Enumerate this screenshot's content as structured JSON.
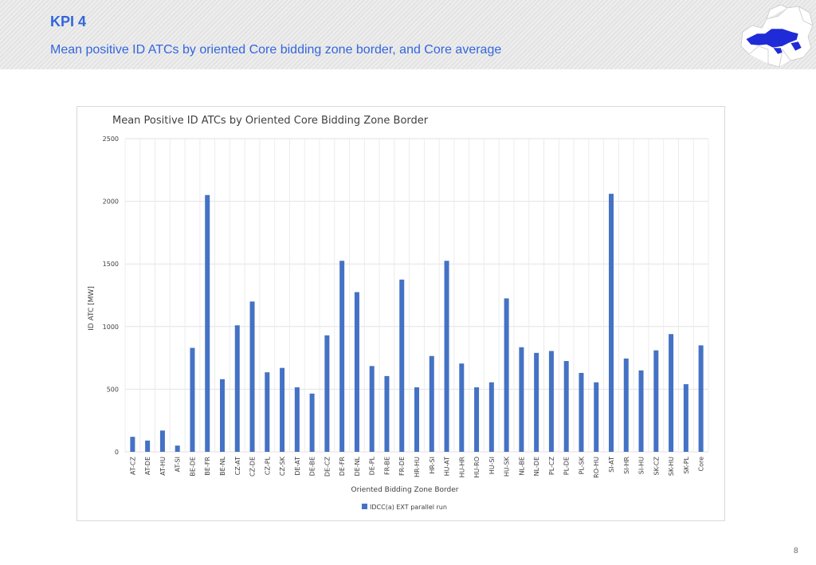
{
  "slide": {
    "title": "KPI 4",
    "subtitle": "Mean positive ID ATCs by oriented Core bidding zone border, and Core average",
    "page_number": "8",
    "accent_color": "#3366dd"
  },
  "chart_data": {
    "type": "bar",
    "title": "Mean Positive ID ATCs by Oriented Core Bidding Zone Border",
    "xlabel": "Oriented Bidding Zone Border",
    "ylabel": "ID ATC [MW]",
    "ylim": [
      0,
      2500
    ],
    "yticks": [
      0,
      500,
      1000,
      1500,
      2000,
      2500
    ],
    "grid": true,
    "legend_position": "bottom",
    "bar_color": "#4472c4",
    "categories": [
      "AT-CZ",
      "AT-DE",
      "AT-HU",
      "AT-SI",
      "BE-DE",
      "BE-FR",
      "BE-NL",
      "CZ-AT",
      "CZ-DE",
      "CZ-PL",
      "CZ-SK",
      "DE-AT",
      "DE-BE",
      "DE-CZ",
      "DE-FR",
      "DE-NL",
      "DE-PL",
      "FR-BE",
      "FR-DE",
      "HR-HU",
      "HR-SI",
      "HU-AT",
      "HU-HR",
      "HU-RO",
      "HU-SI",
      "HU-SK",
      "NL-BE",
      "NL-DE",
      "PL-CZ",
      "PL-DE",
      "PL-SK",
      "RO-HU",
      "SI-AT",
      "SI-HR",
      "SI-HU",
      "SK-CZ",
      "SK-HU",
      "SK-PL",
      "Core"
    ],
    "series": [
      {
        "name": "IDCC(a) EXT parallel run",
        "values": [
          120,
          90,
          170,
          50,
          830,
          2050,
          580,
          1010,
          1200,
          635,
          670,
          515,
          465,
          930,
          1525,
          1275,
          685,
          605,
          1375,
          515,
          765,
          1525,
          705,
          515,
          555,
          1225,
          835,
          790,
          805,
          725,
          630,
          555,
          2060,
          745,
          650,
          810,
          940,
          540,
          850
        ]
      }
    ]
  }
}
